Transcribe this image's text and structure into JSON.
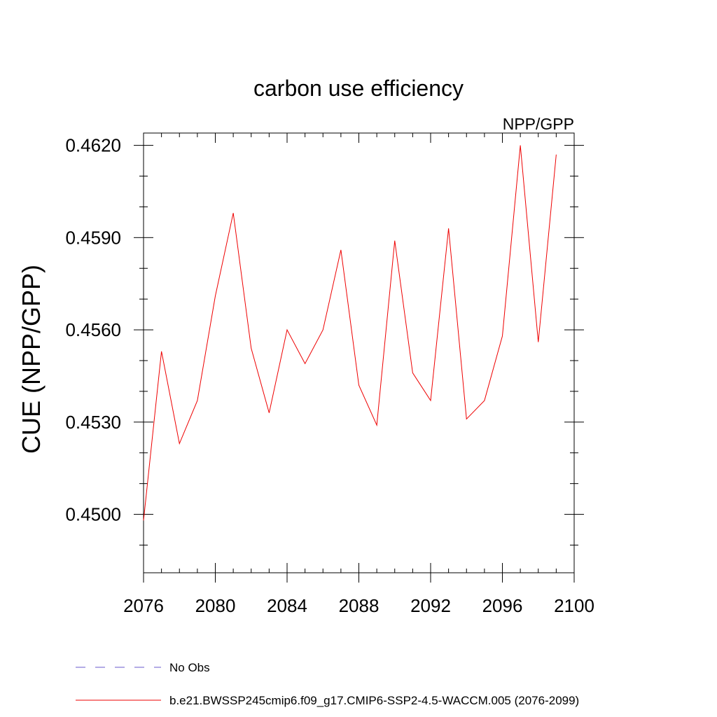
{
  "chart_data": {
    "type": "line",
    "title": "carbon use efficiency",
    "subtitle_right": "NPP/GPP",
    "xlabel": "",
    "ylabel": "CUE  (NPP/GPP)",
    "xlim": [
      2076,
      2100
    ],
    "ylim": [
      0.4481,
      0.4624
    ],
    "x_ticks": [
      2076,
      2080,
      2084,
      2088,
      2092,
      2096,
      2100
    ],
    "x_tick_labels": [
      "2076",
      "2080",
      "2084",
      "2088",
      "2092",
      "2096",
      "2100"
    ],
    "y_ticks": [
      0.45,
      0.453,
      0.456,
      0.459,
      0.462
    ],
    "y_tick_labels": [
      "0.4500",
      "0.4530",
      "0.4560",
      "0.4590",
      "0.4620"
    ],
    "y_minor_step": 0.001,
    "x_minor_step": 1,
    "series": [
      {
        "name": "b.e21.BWSSP245cmip6.f09_g17.CMIP6-SSP2-4.5-WACCM.005 (2076-2099)",
        "color": "#ee0000",
        "style": "solid",
        "x": [
          2076,
          2077,
          2078,
          2079,
          2080,
          2081,
          2082,
          2083,
          2084,
          2085,
          2086,
          2087,
          2088,
          2089,
          2090,
          2091,
          2092,
          2093,
          2094,
          2095,
          2096,
          2097,
          2098,
          2099
        ],
        "y": [
          0.4498,
          0.4553,
          0.4523,
          0.4537,
          0.4571,
          0.4598,
          0.4554,
          0.4533,
          0.456,
          0.4549,
          0.456,
          0.4586,
          0.4542,
          0.4529,
          0.4589,
          0.4546,
          0.4537,
          0.4593,
          0.4531,
          0.4537,
          0.4558,
          0.462,
          0.4556,
          0.4617
        ]
      }
    ],
    "legend": [
      {
        "label": "No Obs",
        "color": "#6a5acd",
        "style": "dashed"
      },
      {
        "label": "b.e21.BWSSP245cmip6.f09_g17.CMIP6-SSP2-4.5-WACCM.005 (2076-2099)",
        "color": "#ee0000",
        "style": "solid"
      }
    ],
    "legend_position": "bottom",
    "grid": false
  }
}
